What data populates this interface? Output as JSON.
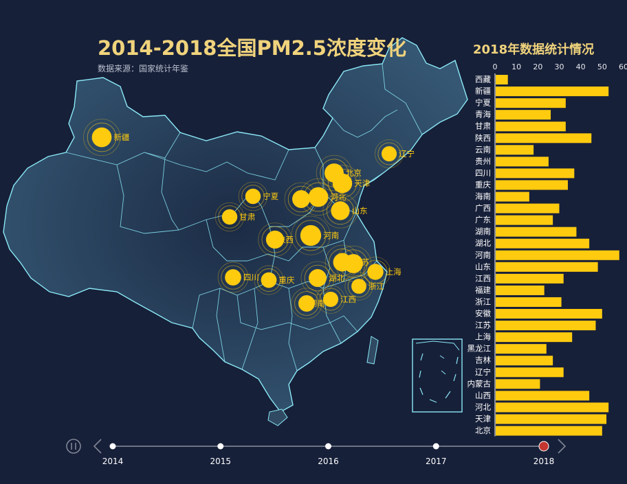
{
  "header": {
    "title": "2014-2018全国PM2.5浓度变化",
    "subtitle": "数据来源：国家统计年鉴"
  },
  "bar_panel": {
    "title": "2018年数据统计情况"
  },
  "colors": {
    "background": "#172039",
    "map_fill": "#2f4a62",
    "map_border": "#8be9f7",
    "accent": "#ffcb0f",
    "title": "#f0d37c",
    "timeline_active": "#c23531"
  },
  "chart_data": [
    {
      "type": "bar",
      "orientation": "horizontal",
      "title": "2018年数据统计情况",
      "xlim": [
        0,
        60
      ],
      "x_ticks": [
        "0",
        "10",
        "20",
        "30",
        "40",
        "50",
        "60"
      ],
      "categories": [
        "西藏",
        "新疆",
        "宁夏",
        "青海",
        "甘肃",
        "陕西",
        "云南",
        "贵州",
        "四川",
        "重庆",
        "海南",
        "广西",
        "广东",
        "湖南",
        "湖北",
        "河南",
        "山东",
        "江西",
        "福建",
        "浙江",
        "安徽",
        "江苏",
        "上海",
        "黑龙江",
        "吉林",
        "辽宁",
        "内蒙古",
        "山西",
        "河北",
        "天津",
        "北京"
      ],
      "values": [
        6,
        53,
        33,
        26,
        33,
        45,
        18,
        25,
        37,
        34,
        16,
        30,
        27,
        38,
        44,
        58,
        48,
        32,
        23,
        31,
        50,
        47,
        36,
        24,
        27,
        32,
        21,
        44,
        53,
        52,
        50
      ],
      "grid": false
    },
    {
      "type": "scatter",
      "subtype": "effect-scatter on map of China",
      "year": "2018",
      "points": [
        {
          "name": "新疆",
          "value": 53
        },
        {
          "name": "辽宁",
          "value": 32
        },
        {
          "name": "北京",
          "value": 50
        },
        {
          "name": "天津",
          "value": 52
        },
        {
          "name": "河北",
          "value": 53
        },
        {
          "name": "山西",
          "value": 44
        },
        {
          "name": "山东",
          "value": 48
        },
        {
          "name": "宁夏",
          "value": 33
        },
        {
          "name": "甘肃",
          "value": 33
        },
        {
          "name": "陕西",
          "value": 45
        },
        {
          "name": "河南",
          "value": 58
        },
        {
          "name": "江苏",
          "value": 47
        },
        {
          "name": "安徽",
          "value": 50
        },
        {
          "name": "上海",
          "value": 36
        },
        {
          "name": "四川",
          "value": 37
        },
        {
          "name": "重庆",
          "value": 34
        },
        {
          "name": "湖北",
          "value": 44
        },
        {
          "name": "浙江",
          "value": 31
        },
        {
          "name": "湖南",
          "value": 38
        },
        {
          "name": "江西",
          "value": 32
        }
      ]
    }
  ],
  "timeline": {
    "years": [
      "2014",
      "2015",
      "2016",
      "2017",
      "2018"
    ],
    "current_index": 4,
    "play_icon": "pause-icon",
    "prev_icon": "chevron-left-icon",
    "next_icon": "chevron-right-icon"
  }
}
